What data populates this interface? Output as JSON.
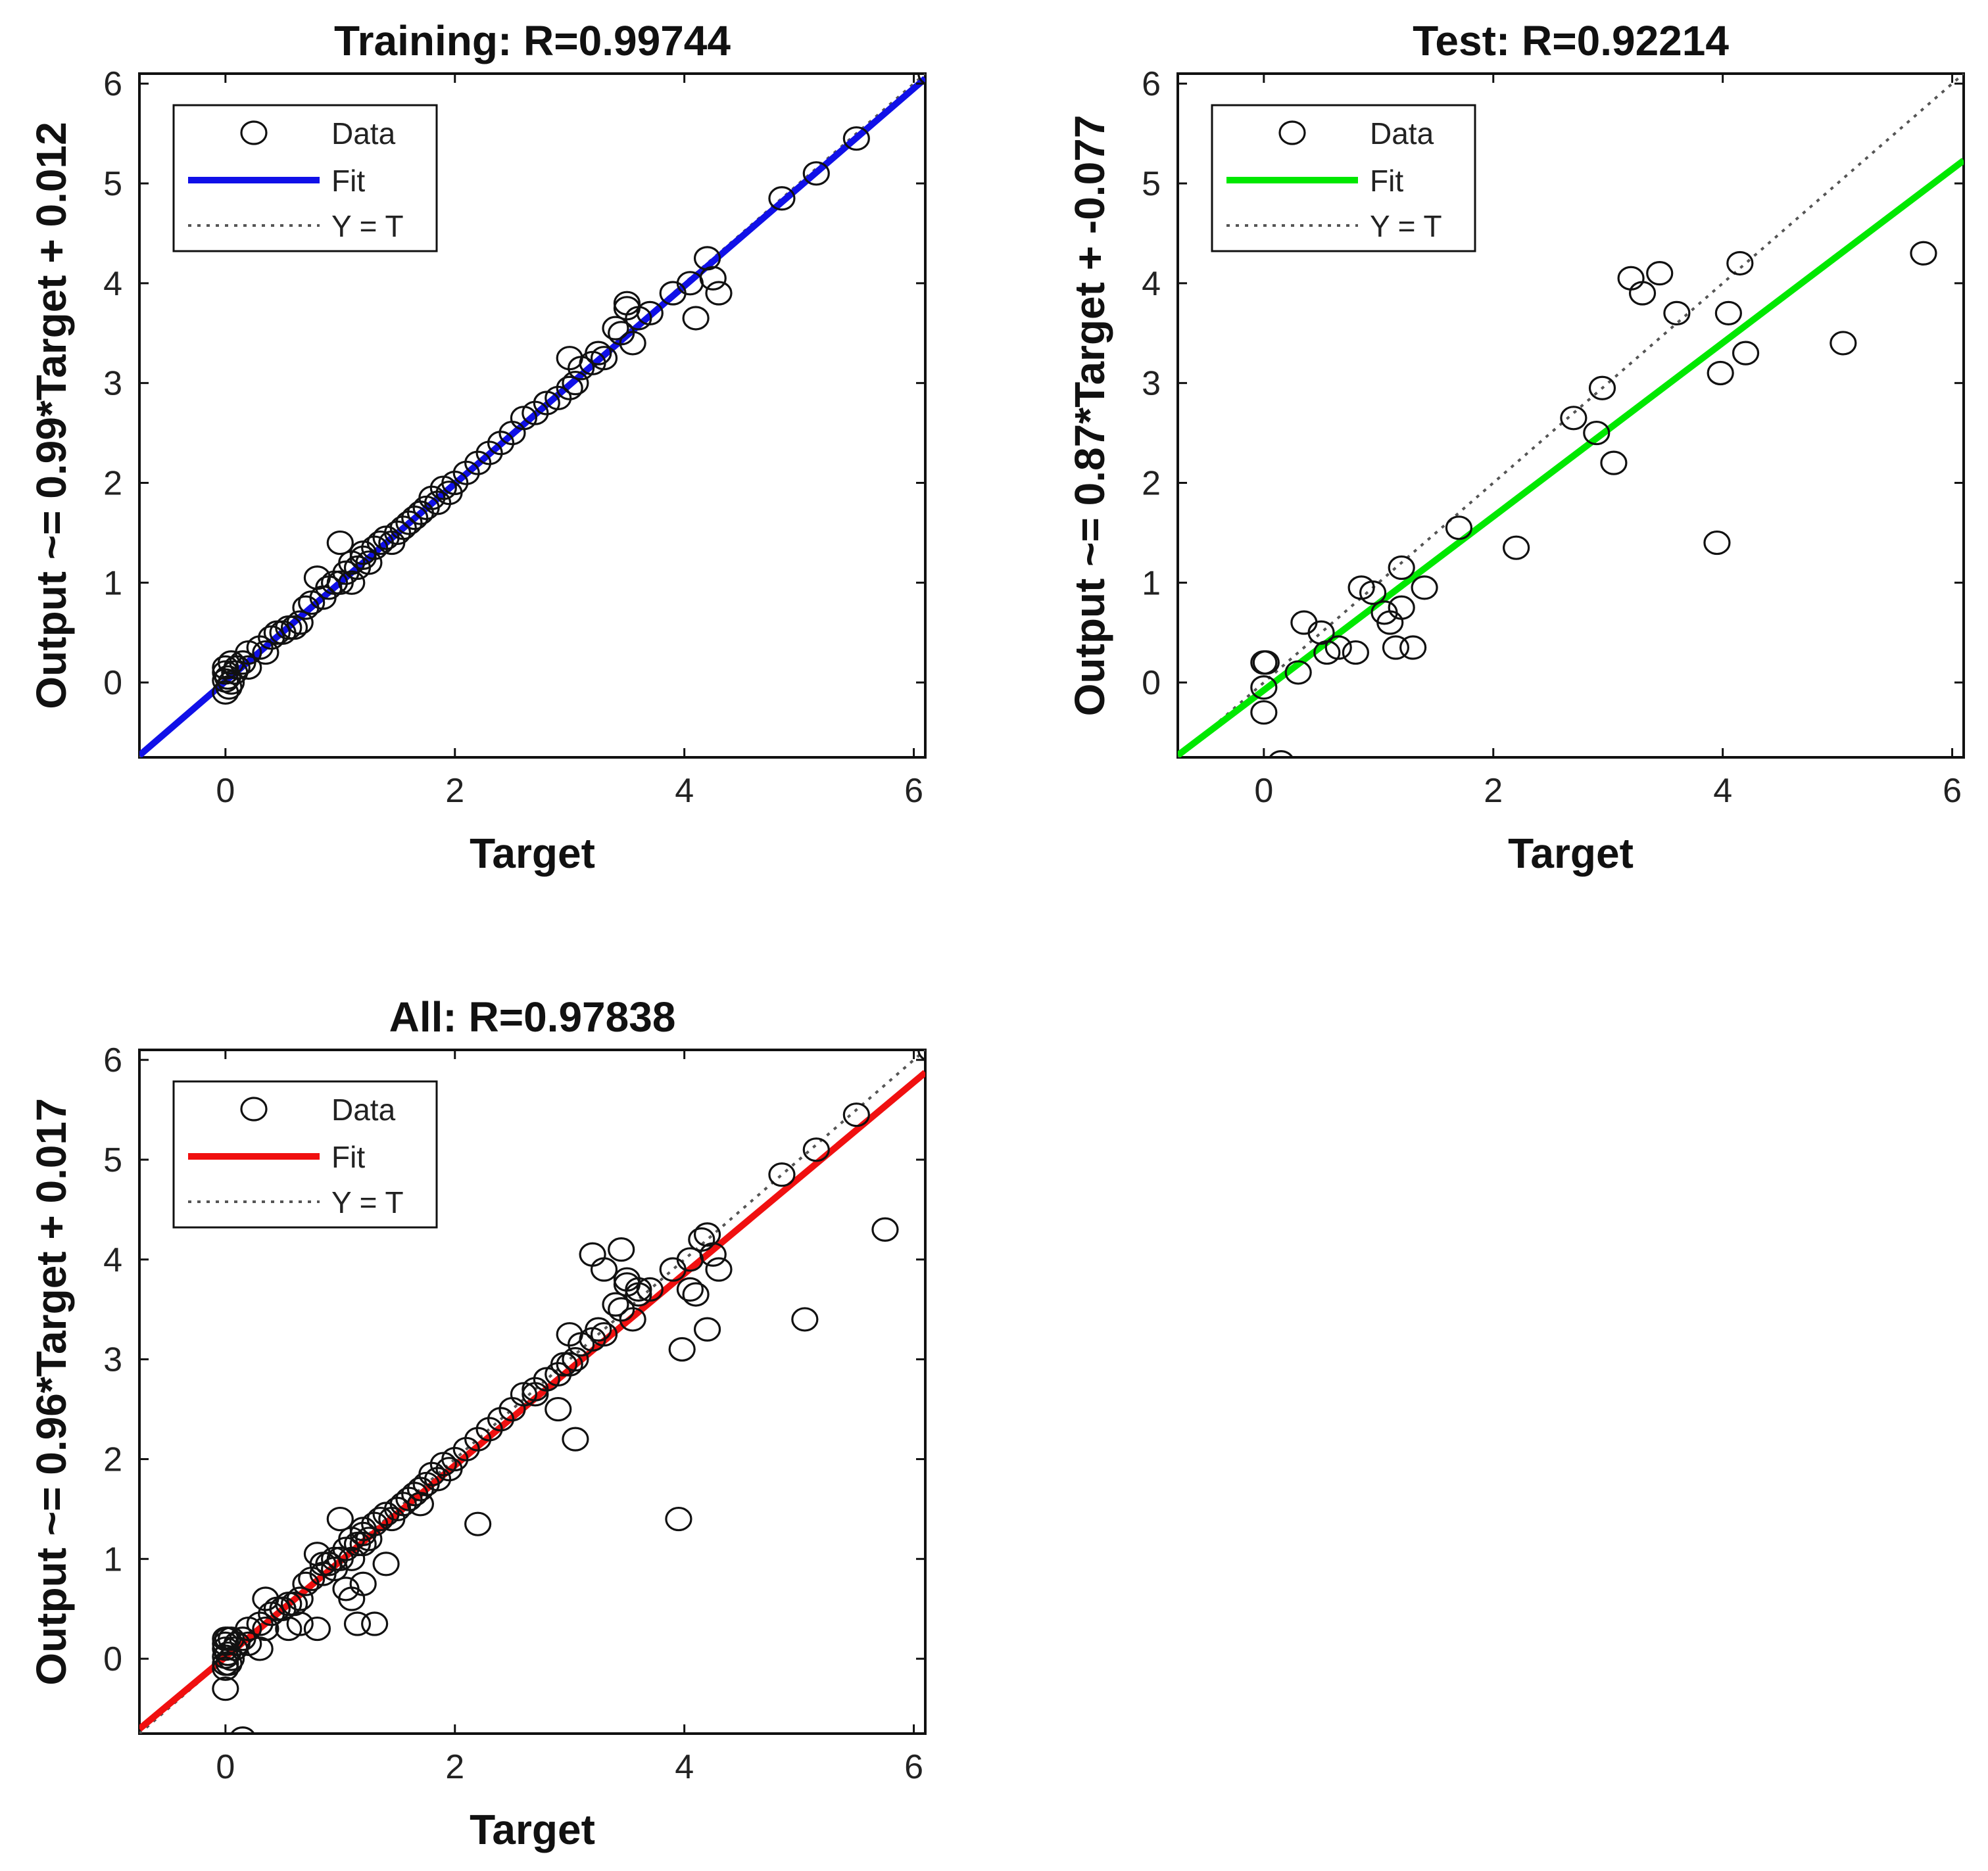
{
  "chart_data": [
    {
      "type": "scatter",
      "title": "Training: R=0.99744",
      "xlabel": "Target",
      "ylabel": "Output ~= 0.99*Target + 0.012",
      "xlim": [
        -0.75,
        6.1
      ],
      "ylim": [
        -0.75,
        6.1
      ],
      "xticks": [
        0,
        2,
        4,
        6
      ],
      "yticks": [
        0,
        1,
        2,
        3,
        4,
        5,
        6
      ],
      "legend_position": "top-left",
      "legend": [
        "Data",
        "Fit",
        "Y = T"
      ],
      "fit": {
        "slope": 0.99,
        "intercept": 0.012,
        "color": "#1010e8"
      },
      "series": [
        {
          "name": "Data",
          "x": [
            0,
            0,
            0,
            0,
            0.02,
            0.03,
            0.05,
            0.05,
            0.08,
            0.1,
            0.15,
            0.2,
            0.2,
            0.3,
            0.35,
            0.4,
            0.45,
            0.5,
            0.55,
            0.6,
            0.65,
            0.7,
            0.75,
            0.8,
            0.85,
            0.9,
            0.95,
            1.0,
            1.0,
            1.05,
            1.1,
            1.1,
            1.15,
            1.2,
            1.2,
            1.25,
            1.3,
            1.35,
            1.4,
            1.45,
            1.5,
            1.55,
            1.6,
            1.65,
            1.7,
            1.75,
            1.8,
            1.85,
            1.9,
            1.95,
            2.0,
            2.1,
            2.2,
            2.3,
            2.4,
            2.5,
            2.6,
            2.7,
            2.8,
            2.9,
            3.0,
            3.0,
            3.05,
            3.1,
            3.2,
            3.25,
            3.3,
            3.4,
            3.45,
            3.5,
            3.5,
            3.55,
            3.6,
            3.7,
            3.9,
            4.05,
            4.1,
            4.2,
            4.25,
            4.3,
            4.85,
            5.15,
            5.5,
            6.15
          ],
          "y": [
            0.02,
            -0.1,
            0.15,
            0.1,
            0.05,
            -0.05,
            0.2,
            0.0,
            0.1,
            0.15,
            0.2,
            0.3,
            0.15,
            0.35,
            0.3,
            0.45,
            0.5,
            0.5,
            0.55,
            0.55,
            0.6,
            0.75,
            0.8,
            1.05,
            0.85,
            0.95,
            1.0,
            1.4,
            1.0,
            1.1,
            1.2,
            1.0,
            1.15,
            1.3,
            1.25,
            1.2,
            1.35,
            1.4,
            1.45,
            1.4,
            1.5,
            1.55,
            1.6,
            1.65,
            1.7,
            1.75,
            1.85,
            1.8,
            1.95,
            1.9,
            2.0,
            2.1,
            2.2,
            2.3,
            2.4,
            2.5,
            2.65,
            2.7,
            2.8,
            2.85,
            3.25,
            2.95,
            3.0,
            3.15,
            3.2,
            3.3,
            3.25,
            3.55,
            3.5,
            3.8,
            3.75,
            3.4,
            3.65,
            3.7,
            3.9,
            4.0,
            3.65,
            4.25,
            4.05,
            3.9,
            4.85,
            5.1,
            5.45,
            6.1
          ]
        }
      ]
    },
    {
      "type": "scatter",
      "title": "Test: R=0.92214",
      "xlabel": "Target",
      "ylabel": "Output ~= 0.87*Target + -0.077",
      "xlim": [
        -0.75,
        6.1
      ],
      "ylim": [
        -0.75,
        6.1
      ],
      "xticks": [
        0,
        2,
        4,
        6
      ],
      "yticks": [
        0,
        1,
        2,
        3,
        4,
        5,
        6
      ],
      "legend_position": "top-left",
      "legend": [
        "Data",
        "Fit",
        "Y = T"
      ],
      "fit": {
        "slope": 0.87,
        "intercept": -0.077,
        "color": "#00e800"
      },
      "series": [
        {
          "name": "Data",
          "x": [
            0.0,
            0.0,
            0.0,
            0.02,
            0.15,
            0.3,
            0.35,
            0.5,
            0.55,
            0.65,
            0.8,
            0.85,
            0.95,
            1.05,
            1.1,
            1.15,
            1.2,
            1.2,
            1.3,
            1.4,
            1.7,
            2.2,
            2.7,
            2.9,
            2.95,
            3.05,
            3.2,
            3.3,
            3.45,
            3.6,
            3.95,
            3.98,
            4.05,
            4.15,
            4.2,
            5.05,
            5.75
          ],
          "y": [
            0.2,
            -0.05,
            -0.3,
            0.2,
            -0.8,
            0.1,
            0.6,
            0.5,
            0.3,
            0.35,
            0.3,
            0.95,
            0.9,
            0.7,
            0.6,
            0.35,
            1.15,
            0.75,
            0.35,
            0.95,
            1.55,
            1.35,
            2.65,
            2.5,
            2.95,
            2.2,
            4.05,
            3.9,
            4.1,
            3.7,
            1.4,
            3.1,
            3.7,
            4.2,
            3.3,
            3.4,
            4.3
          ]
        }
      ]
    },
    {
      "type": "scatter",
      "title": "All: R=0.97838",
      "xlabel": "Target",
      "ylabel": "Output ~= 0.96*Target + 0.017",
      "xlim": [
        -0.75,
        6.1
      ],
      "ylim": [
        -0.75,
        6.1
      ],
      "xticks": [
        0,
        2,
        4,
        6
      ],
      "yticks": [
        0,
        1,
        2,
        3,
        4,
        5,
        6
      ],
      "legend_position": "top-left",
      "legend": [
        "Data",
        "Fit",
        "Y = T"
      ],
      "fit": {
        "slope": 0.96,
        "intercept": 0.017,
        "color": "#f01010"
      },
      "series": [
        {
          "name": "Data",
          "x": [
            0,
            0,
            0,
            0,
            0.02,
            0.03,
            0.05,
            0.05,
            0.08,
            0.1,
            0.15,
            0.2,
            0.2,
            0.3,
            0.35,
            0.4,
            0.45,
            0.5,
            0.55,
            0.6,
            0.65,
            0.7,
            0.75,
            0.8,
            0.85,
            0.9,
            0.95,
            1.0,
            1.0,
            1.05,
            1.1,
            1.1,
            1.15,
            1.2,
            1.2,
            1.25,
            1.3,
            1.35,
            1.4,
            1.45,
            1.5,
            1.55,
            1.6,
            1.65,
            1.7,
            1.75,
            1.8,
            1.85,
            1.9,
            1.95,
            2.0,
            2.1,
            2.2,
            2.3,
            2.4,
            2.5,
            2.6,
            2.7,
            2.8,
            2.9,
            3.0,
            3.0,
            3.05,
            3.1,
            3.2,
            3.25,
            3.3,
            3.4,
            3.45,
            3.5,
            3.5,
            3.55,
            3.6,
            3.7,
            3.9,
            4.05,
            4.1,
            4.2,
            4.25,
            4.3,
            4.85,
            5.15,
            5.5,
            6.15,
            0.0,
            0.0,
            0.0,
            0.02,
            0.15,
            0.3,
            0.35,
            0.5,
            0.55,
            0.65,
            0.8,
            0.85,
            0.95,
            1.05,
            1.1,
            1.15,
            1.2,
            1.2,
            1.3,
            1.4,
            1.7,
            2.2,
            2.7,
            2.9,
            2.95,
            3.05,
            3.2,
            3.3,
            3.45,
            3.6,
            3.95,
            3.98,
            4.05,
            4.15,
            4.2,
            5.05,
            5.75
          ],
          "y": [
            0.02,
            -0.1,
            0.15,
            0.1,
            0.05,
            -0.05,
            0.2,
            0.0,
            0.1,
            0.15,
            0.2,
            0.3,
            0.15,
            0.35,
            0.3,
            0.45,
            0.5,
            0.5,
            0.55,
            0.55,
            0.6,
            0.75,
            0.8,
            1.05,
            0.85,
            0.95,
            1.0,
            1.4,
            1.0,
            1.1,
            1.2,
            1.0,
            1.15,
            1.3,
            1.25,
            1.2,
            1.35,
            1.4,
            1.45,
            1.4,
            1.5,
            1.55,
            1.6,
            1.65,
            1.7,
            1.75,
            1.85,
            1.8,
            1.95,
            1.9,
            2.0,
            2.1,
            2.2,
            2.3,
            2.4,
            2.5,
            2.65,
            2.7,
            2.8,
            2.85,
            3.25,
            2.95,
            3.0,
            3.15,
            3.2,
            3.3,
            3.25,
            3.55,
            3.5,
            3.8,
            3.75,
            3.4,
            3.65,
            3.7,
            3.9,
            4.0,
            3.65,
            4.25,
            4.05,
            3.9,
            4.85,
            5.1,
            5.45,
            6.1,
            0.2,
            -0.05,
            -0.3,
            0.2,
            -0.8,
            0.1,
            0.6,
            0.5,
            0.3,
            0.35,
            0.3,
            0.95,
            0.9,
            0.7,
            0.6,
            0.35,
            1.15,
            0.75,
            0.35,
            0.95,
            1.55,
            1.35,
            2.65,
            2.5,
            2.95,
            2.2,
            4.05,
            3.9,
            4.1,
            3.7,
            1.4,
            3.1,
            3.7,
            4.2,
            3.3,
            3.4,
            4.3
          ]
        }
      ]
    }
  ]
}
